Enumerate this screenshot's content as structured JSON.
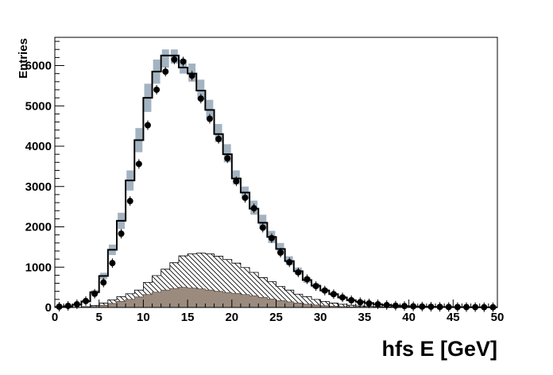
{
  "chart_data": {
    "type": "histogram",
    "title": "",
    "xlabel": "hfs E [GeV]",
    "ylabel": "Entries",
    "xlim": [
      0,
      50
    ],
    "ylim": [
      0,
      6700
    ],
    "bin_width": 1,
    "x_ticks": [
      0,
      5,
      10,
      15,
      20,
      25,
      30,
      35,
      40,
      45,
      50
    ],
    "x_tick_labels": [
      "0",
      "5",
      "10",
      "15",
      "20",
      "25",
      "30",
      "35",
      "40",
      "45",
      "50"
    ],
    "y_ticks": [
      0,
      1000,
      2000,
      3000,
      4000,
      5000,
      6000
    ],
    "y_tick_labels": [
      "0",
      "1000",
      "2000",
      "3000",
      "4000",
      "5000",
      "6000"
    ],
    "grid": false,
    "colors": {
      "data": "#000000",
      "mc_total": "#000000",
      "mc_band": "#a3b3c1",
      "hatched": "#000000",
      "filled": "#9b8b7f"
    },
    "series": [
      {
        "kind": "data_points",
        "x": [
          0.5,
          1.5,
          2.5,
          3.5,
          4.5,
          5.5,
          6.5,
          7.5,
          8.5,
          9.5,
          10.5,
          11.5,
          12.5,
          13.5,
          14.5,
          15.5,
          16.5,
          17.5,
          18.5,
          19.5,
          20.5,
          21.5,
          22.5,
          23.5,
          24.5,
          25.5,
          26.5,
          27.5,
          28.5,
          29.5,
          30.5,
          31.5,
          32.5,
          33.5,
          34.5,
          35.5,
          36.5,
          37.5,
          38.5,
          39.5,
          40.5,
          41.5,
          42.5,
          43.5,
          44.5,
          45.5,
          46.5,
          47.5,
          48.5,
          49.5
        ],
        "values": [
          20,
          40,
          80,
          160,
          340,
          620,
          1100,
          1830,
          2640,
          3560,
          4520,
          5400,
          5850,
          6150,
          6100,
          5750,
          5180,
          4680,
          4180,
          3700,
          3130,
          2720,
          2460,
          1980,
          1720,
          1360,
          1120,
          870,
          700,
          530,
          420,
          330,
          250,
          180,
          130,
          100,
          80,
          60,
          45,
          35,
          28,
          22,
          18,
          15,
          12,
          10,
          9,
          8,
          7,
          6
        ]
      },
      {
        "kind": "mc_total_step",
        "values": [
          10,
          30,
          70,
          150,
          380,
          780,
          1430,
          2150,
          3150,
          4150,
          5200,
          5850,
          6250,
          6250,
          5950,
          5800,
          5380,
          4900,
          4300,
          3800,
          3200,
          2850,
          2450,
          2100,
          1750,
          1450,
          1150,
          900,
          680,
          540,
          420,
          330,
          250,
          180,
          140,
          110,
          80,
          60,
          45,
          35,
          25,
          20,
          15,
          12,
          10,
          8,
          7,
          6,
          5,
          4
        ]
      },
      {
        "kind": "mc_uncertainty_band",
        "low": [
          5,
          20,
          55,
          120,
          330,
          700,
          1300,
          1950,
          2900,
          3850,
          4850,
          5550,
          5950,
          6050,
          5800,
          5600,
          5150,
          4700,
          4100,
          3600,
          3050,
          2700,
          2300,
          1950,
          1600,
          1330,
          1050,
          820,
          610,
          480,
          370,
          290,
          215,
          155,
          120,
          95,
          70,
          50,
          38,
          30,
          20,
          16,
          12,
          10,
          8,
          6,
          5,
          4,
          4,
          3
        ],
        "high": [
          15,
          40,
          85,
          180,
          430,
          860,
          1560,
          2350,
          3400,
          4450,
          5550,
          6150,
          6400,
          6400,
          6150,
          6050,
          5650,
          5150,
          4550,
          4050,
          3400,
          3000,
          2650,
          2300,
          1900,
          1600,
          1270,
          990,
          750,
          600,
          470,
          370,
          285,
          205,
          160,
          125,
          92,
          70,
          52,
          40,
          30,
          24,
          18,
          14,
          12,
          10,
          9,
          8,
          6,
          5
        ]
      },
      {
        "kind": "hatched_hist",
        "values": [
          0,
          0,
          5,
          20,
          50,
          110,
          190,
          270,
          340,
          430,
          620,
          790,
          950,
          1110,
          1280,
          1330,
          1350,
          1330,
          1270,
          1190,
          1100,
          990,
          870,
          740,
          640,
          520,
          430,
          330,
          270,
          200,
          150,
          110,
          80,
          55,
          38,
          25,
          18,
          12,
          9,
          6,
          4,
          3,
          2,
          2,
          1,
          1,
          1,
          1,
          0,
          0
        ]
      },
      {
        "kind": "filled_hist",
        "values": [
          0,
          0,
          2,
          10,
          25,
          55,
          100,
          150,
          200,
          260,
          320,
          380,
          430,
          470,
          500,
          480,
          460,
          430,
          400,
          370,
          350,
          320,
          290,
          250,
          210,
          170,
          140,
          110,
          80,
          60,
          45,
          32,
          22,
          15,
          10,
          7,
          5,
          3,
          2,
          1,
          1,
          1,
          0,
          0,
          0,
          0,
          0,
          0,
          0,
          0
        ]
      }
    ]
  }
}
